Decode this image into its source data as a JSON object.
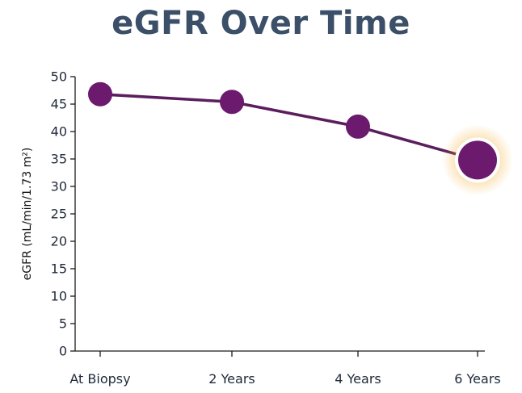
{
  "chart_data": {
    "type": "line",
    "title": "eGFR Over Time",
    "xlabel": "",
    "ylabel": "eGFR (mL/min/1.73 m²)",
    "categories": [
      "At Biopsy",
      "2 Years",
      "4 Years",
      "6 Years"
    ],
    "values": [
      46.8,
      45.4,
      40.9,
      34.8
    ],
    "ylim": [
      0,
      50
    ],
    "yticks": [
      0,
      5,
      10,
      15,
      20,
      25,
      30,
      35,
      40,
      45,
      50
    ],
    "grid": false,
    "highlight_index": 3,
    "colors": {
      "line": "#5b1d5e",
      "marker": "#6b1a6e",
      "highlight_glow": "#f5a623",
      "title": "#3b4f68"
    }
  }
}
